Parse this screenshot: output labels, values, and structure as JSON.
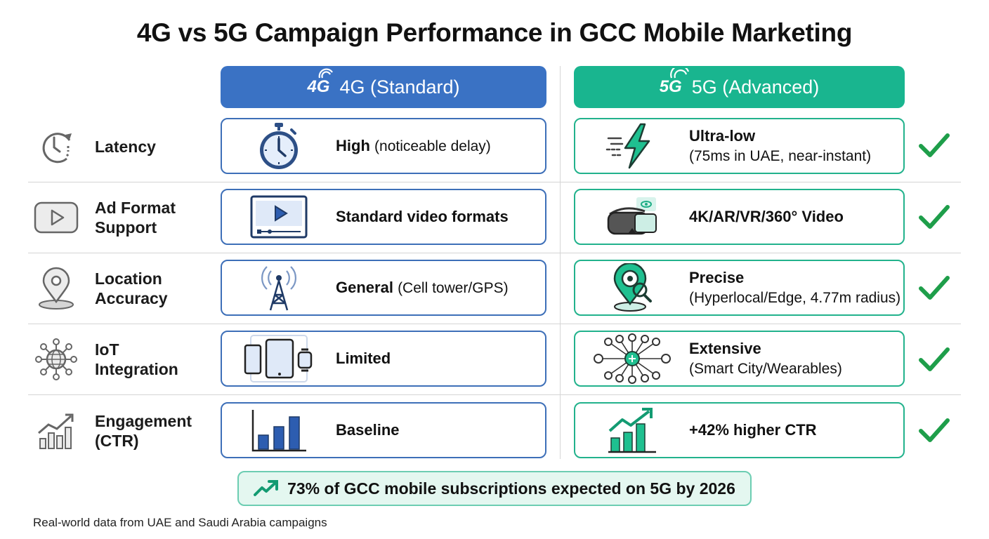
{
  "title": "4G vs 5G Campaign Performance in GCC Mobile Marketing",
  "columns": {
    "g4": {
      "label": "4G (Standard)",
      "logo": "4G",
      "color": "#3a72c4"
    },
    "g5": {
      "label": "5G (Advanced)",
      "logo": "5G",
      "color": "#19b58f"
    }
  },
  "rows": [
    {
      "label_line1": "Latency",
      "label_line2": "",
      "icon": "clock-icon",
      "g4": {
        "main": "High",
        "detail": "(noticeable delay)",
        "icon": "stopwatch-icon"
      },
      "g5": {
        "main": "Ultra-low",
        "detail": "(75ms in UAE, near-instant)",
        "icon": "lightning-icon"
      }
    },
    {
      "label_line1": "Ad Format",
      "label_line2": "Support",
      "icon": "play-button-icon",
      "g4": {
        "main": "Standard video formats",
        "detail": "",
        "icon": "video-player-icon"
      },
      "g5": {
        "main": "4K/AR/VR/360° Video",
        "detail": "",
        "icon": "vr-headset-icon"
      }
    },
    {
      "label_line1": "Location",
      "label_line2": "Accuracy",
      "icon": "map-pin-icon",
      "g4": {
        "main": "General",
        "detail": "(Cell tower/GPS)",
        "icon": "cell-tower-icon"
      },
      "g5": {
        "main": "Precise",
        "detail": "(Hyperlocal/Edge, 4.77m radius)",
        "icon": "precise-location-icon"
      }
    },
    {
      "label_line1": "IoT",
      "label_line2": "Integration",
      "icon": "network-globe-icon",
      "g4": {
        "main": "Limited",
        "detail": "",
        "icon": "devices-icon"
      },
      "g5": {
        "main": "Extensive",
        "detail": "(Smart City/Wearables)",
        "icon": "iot-network-icon"
      }
    },
    {
      "label_line1": "Engagement",
      "label_line2": "(CTR)",
      "icon": "growth-chart-icon",
      "g4": {
        "main": "Baseline",
        "detail": "",
        "icon": "bar-chart-icon"
      },
      "g5": {
        "main": "+42% higher CTR",
        "detail": "",
        "icon": "rising-chart-icon"
      }
    }
  ],
  "banner": {
    "text": "73% of GCC mobile subscriptions expected on 5G by 2026",
    "icon": "trend-up-icon"
  },
  "footnote": "Real-world data from UAE and Saudi Arabia campaigns",
  "colors": {
    "blue": "#3d6fb8",
    "green": "#22b28c",
    "check": "#1e9e4a"
  }
}
